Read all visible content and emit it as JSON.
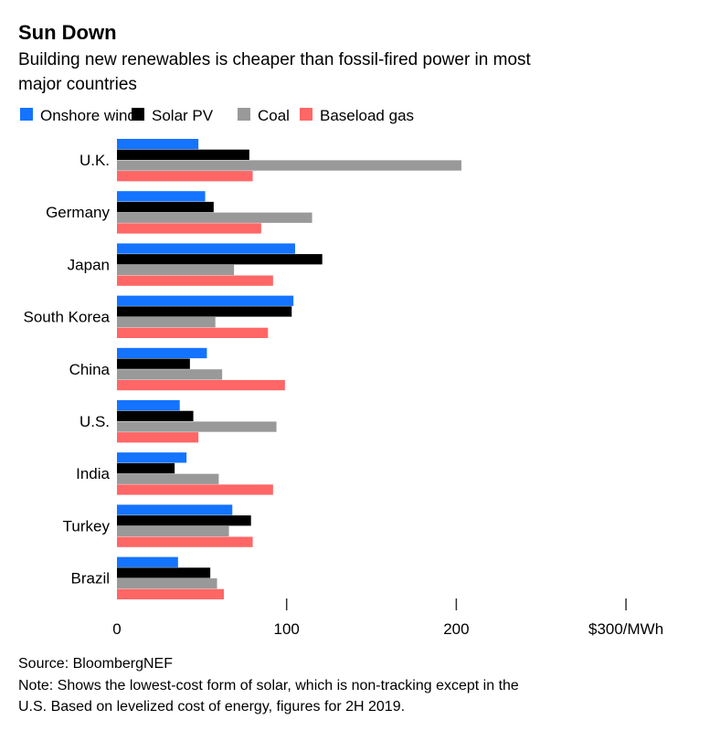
{
  "chart_data": {
    "type": "bar",
    "orientation": "horizontal",
    "title": "Sun Down",
    "subtitle": "Building new renewables is cheaper than fossil-fired power in most major countries",
    "categories": [
      "U.K.",
      "Germany",
      "Japan",
      "South Korea",
      "China",
      "U.S.",
      "India",
      "Turkey",
      "Brazil"
    ],
    "series": [
      {
        "name": "Onshore wind",
        "color": "#1473ff",
        "values": [
          48,
          52,
          105,
          104,
          53,
          37,
          41,
          68,
          36
        ]
      },
      {
        "name": "Solar PV",
        "color": "#000000",
        "values": [
          78,
          57,
          121,
          103,
          43,
          45,
          34,
          79,
          55
        ]
      },
      {
        "name": "Coal",
        "color": "#999999",
        "values": [
          203,
          115,
          69,
          58,
          62,
          94,
          60,
          66,
          59
        ]
      },
      {
        "name": "Baseload gas",
        "color": "#ff6666",
        "values": [
          80,
          85,
          92,
          89,
          99,
          48,
          92,
          80,
          63
        ]
      }
    ],
    "xlim": [
      0,
      300
    ],
    "xticks": [
      "0",
      "100",
      "200",
      "$300/MWh"
    ],
    "xtick_values": [
      0,
      100,
      200,
      300
    ],
    "grid": false,
    "legend": "top-left",
    "source": "Source: BloombergNEF",
    "note_lines": [
      "Note: Shows the lowest-cost form of solar, which is non-tracking except in the",
      "U.S. Based on levelized cost of energy, figures for 2H 2019."
    ]
  }
}
